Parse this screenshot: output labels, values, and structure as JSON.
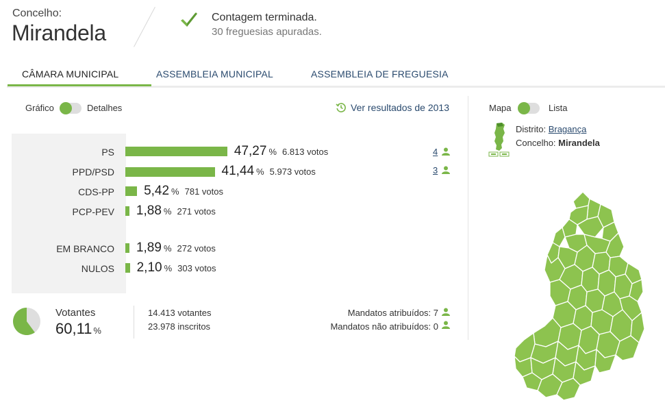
{
  "header": {
    "concelho_label": "Concelho:",
    "concelho_name": "Mirandela",
    "status_title": "Contagem terminada.",
    "status_subtitle": "30 freguesias apuradas."
  },
  "tabs": [
    {
      "label": "CÂMARA MUNICIPAL",
      "active": true
    },
    {
      "label": "ASSEMBLEIA MUNICIPAL",
      "active": false
    },
    {
      "label": "ASSEMBLEIA DE FREGUESIA",
      "active": false
    }
  ],
  "view_toggle": {
    "left_label": "Gráfico",
    "right_label": "Detalhes",
    "selected": "Gráfico"
  },
  "previous_results_link": "Ver resultados de 2013",
  "results": [
    {
      "party": "PS",
      "percent": "47,27",
      "pct_value": 47.27,
      "votes": "6.813 votos",
      "seats": "4"
    },
    {
      "party": "PPD/PSD",
      "percent": "41,44",
      "pct_value": 41.44,
      "votes": "5.973 votos",
      "seats": "3"
    },
    {
      "party": "CDS-PP",
      "percent": "5,42",
      "pct_value": 5.42,
      "votes": "781 votos",
      "seats": ""
    },
    {
      "party": "PCP-PEV",
      "percent": "1,88",
      "pct_value": 1.88,
      "votes": "271 votos",
      "seats": ""
    }
  ],
  "other_results": [
    {
      "label": "EM BRANCO",
      "percent": "1,89",
      "pct_value": 1.89,
      "votes": "272 votos"
    },
    {
      "label": "NULOS",
      "percent": "2,10",
      "pct_value": 2.1,
      "votes": "303 votos"
    }
  ],
  "percent_symbol": "%",
  "turnout": {
    "label": "Votantes",
    "percent": "60,11",
    "pct_value": 60.11,
    "voters": "14.413 votantes",
    "registered": "23.978 inscritos"
  },
  "mandates": {
    "assigned": "Mandatos atribuídos: 7",
    "unassigned": "Mandatos não atribuídos: 0"
  },
  "map_panel": {
    "toggle_left": "Mapa",
    "toggle_right": "Lista",
    "distrito_label": "Distrito:",
    "distrito_value": "Bragança",
    "concelho_label": "Concelho:",
    "concelho_value": "Mirandela"
  },
  "colors": {
    "accent": "#7ab648",
    "link": "#2a4a6e",
    "map_fill": "#8dc34f",
    "map_stroke": "#ffffff"
  },
  "icons": [
    "check-icon",
    "history-icon",
    "person-icon",
    "portugal-map-icon",
    "zoom-icon"
  ]
}
